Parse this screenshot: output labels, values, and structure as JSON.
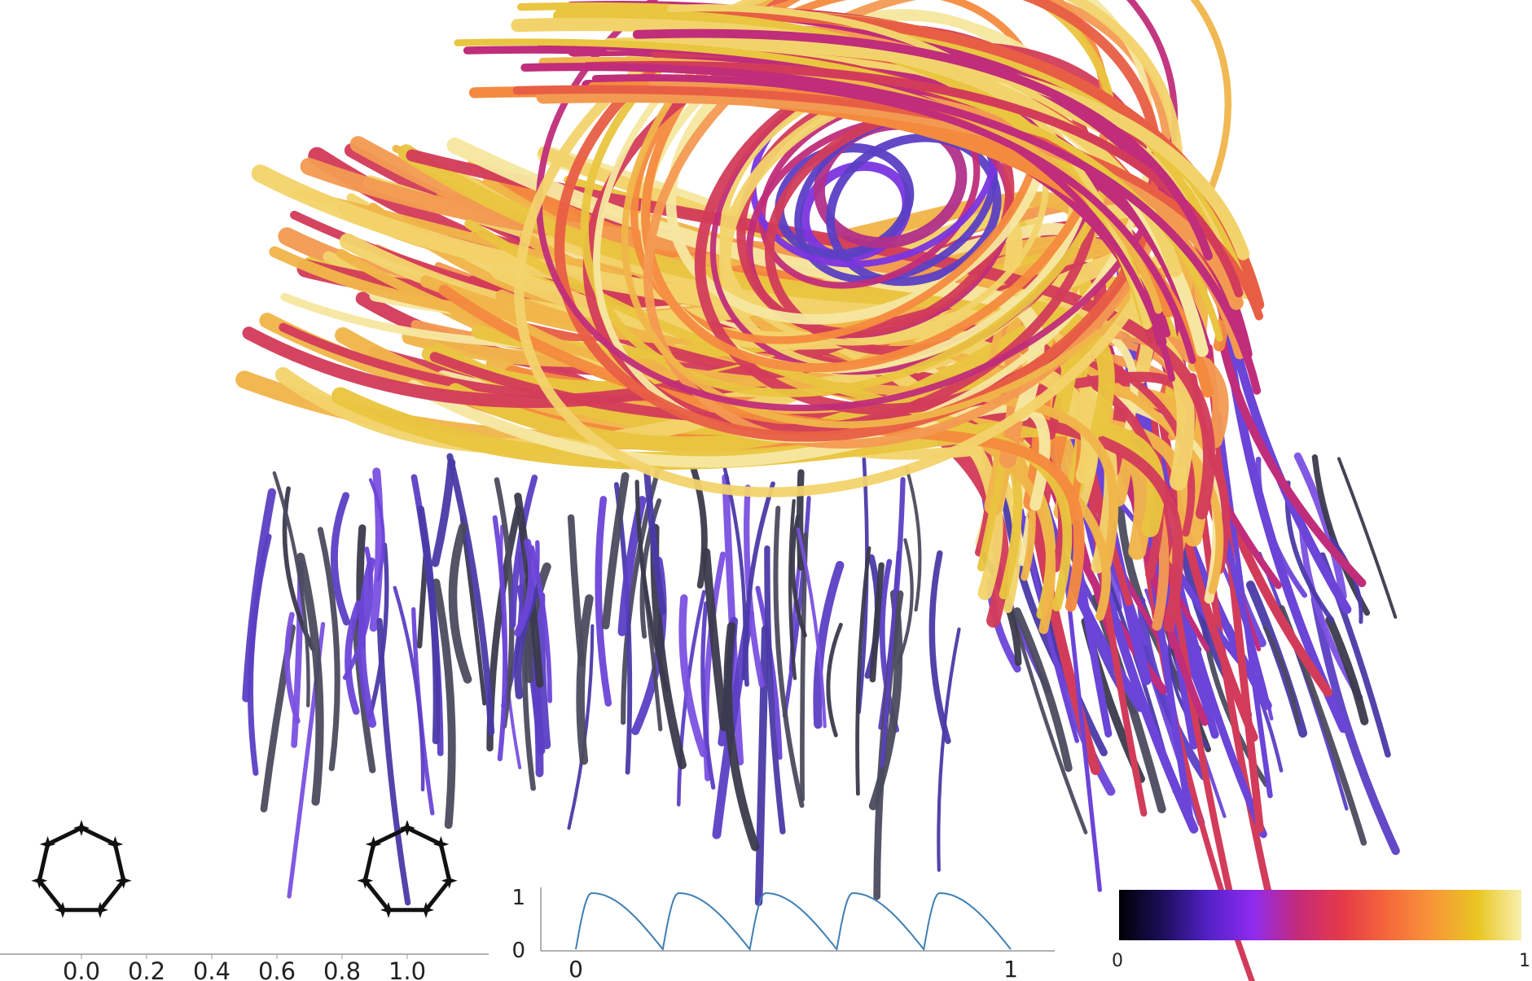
{
  "tube_shape_widget": {
    "axis_ticks": [
      "0.0",
      "0.2",
      "0.4",
      "0.6",
      "0.8",
      "1.0"
    ],
    "left_cross_section": "heptagon-star-icon",
    "right_cross_section": "heptagon-star-icon"
  },
  "profile_plot": {
    "y_ticks": [
      "1",
      "0"
    ],
    "x_ticks": [
      "0",
      "1"
    ],
    "curve_color": "#3f7fb3",
    "pulses": 5
  },
  "colorbar": {
    "min_label": "0",
    "max_label": "1",
    "colormap": "plasma-like",
    "stops": [
      "#000004",
      "#1d0f5c",
      "#5321c8",
      "#8f2bf0",
      "#c42a7a",
      "#e63a48",
      "#f5683a",
      "#f79638",
      "#e9c521",
      "#f8f0ae"
    ]
  },
  "scene": {
    "description_icon": "streamtube-vortex-render"
  }
}
